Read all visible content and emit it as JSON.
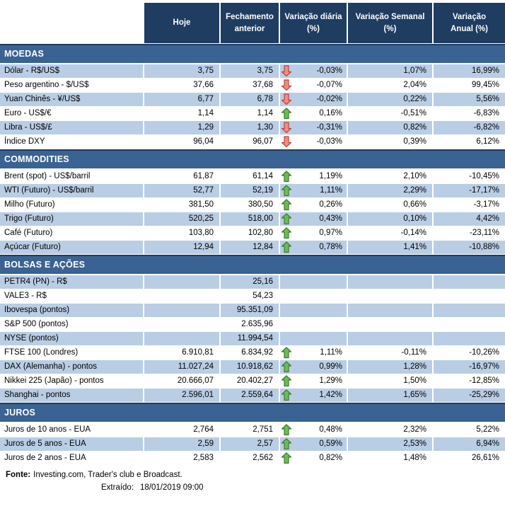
{
  "table": {
    "columns": [
      "",
      "Hoje",
      "Fechamento\nanterior",
      "Variação diária\n(%)",
      "Variação Semanal\n(%)",
      "Variação\nAnual (%)"
    ]
  },
  "sections": [
    {
      "title": "MOEDAS",
      "rows": [
        {
          "label": "Dólar - R$/US$",
          "hoje": "3,75",
          "fechamento": "3,75",
          "arrow": "down",
          "var_diaria": "-0,03%",
          "var_semanal": "1,07%",
          "var_anual": "16,99%",
          "shaded": true
        },
        {
          "label": "Peso argentino - $/US$",
          "hoje": "37,66",
          "fechamento": "37,68",
          "arrow": "down",
          "var_diaria": "-0,07%",
          "var_semanal": "2,04%",
          "var_anual": "99,45%",
          "shaded": false
        },
        {
          "label": "Yuan Chinês - ¥/US$",
          "hoje": "6,77",
          "fechamento": "6,78",
          "arrow": "down",
          "var_diaria": "-0,02%",
          "var_semanal": "0,22%",
          "var_anual": "5,56%",
          "shaded": true
        },
        {
          "label": "Euro - US$/€",
          "hoje": "1,14",
          "fechamento": "1,14",
          "arrow": "up",
          "var_diaria": "0,16%",
          "var_semanal": "-0,51%",
          "var_anual": "-6,83%",
          "shaded": false
        },
        {
          "label": "Libra - US$/£",
          "hoje": "1,29",
          "fechamento": "1,30",
          "arrow": "down",
          "var_diaria": "-0,31%",
          "var_semanal": "0,82%",
          "var_anual": "-6,82%",
          "shaded": true
        },
        {
          "label": "Índice DXY",
          "hoje": "96,04",
          "fechamento": "96,07",
          "arrow": "down",
          "var_diaria": "-0,03%",
          "var_semanal": "0,39%",
          "var_anual": "6,12%",
          "shaded": false
        }
      ]
    },
    {
      "title": "COMMODITIES",
      "rows": [
        {
          "label": "Brent (spot) - US$/barril",
          "hoje": "61,87",
          "fechamento": "61,14",
          "arrow": "up",
          "var_diaria": "1,19%",
          "var_semanal": "2,10%",
          "var_anual": "-10,45%",
          "shaded": false
        },
        {
          "label": "WTI (Futuro) - US$/barril",
          "hoje": "52,77",
          "fechamento": "52,19",
          "arrow": "up",
          "var_diaria": "1,11%",
          "var_semanal": "2,29%",
          "var_anual": "-17,17%",
          "shaded": true
        },
        {
          "label": "Milho (Futuro)",
          "hoje": "381,50",
          "fechamento": "380,50",
          "arrow": "up",
          "var_diaria": "0,26%",
          "var_semanal": "0,66%",
          "var_anual": "-3,17%",
          "shaded": false
        },
        {
          "label": "Trigo (Futuro)",
          "hoje": "520,25",
          "fechamento": "518,00",
          "arrow": "up",
          "var_diaria": "0,43%",
          "var_semanal": "0,10%",
          "var_anual": "4,42%",
          "shaded": true
        },
        {
          "label": "Café (Futuro)",
          "hoje": "103,80",
          "fechamento": "102,80",
          "arrow": "up",
          "var_diaria": "0,97%",
          "var_semanal": "-0,14%",
          "var_anual": "-23,11%",
          "shaded": false
        },
        {
          "label": "Açúcar (Futuro)",
          "hoje": "12,94",
          "fechamento": "12,84",
          "arrow": "up",
          "var_diaria": "0,78%",
          "var_semanal": "1,41%",
          "var_anual": "-10,88%",
          "shaded": true
        }
      ]
    },
    {
      "title": "BOLSAS E AÇÕES",
      "rows": [
        {
          "label": "PETR4 (PN) - R$",
          "hoje": "",
          "fechamento": "25,16",
          "arrow": "",
          "var_diaria": "",
          "var_semanal": "",
          "var_anual": "",
          "shaded": true
        },
        {
          "label": "VALE3 - R$",
          "hoje": "",
          "fechamento": "54,23",
          "arrow": "",
          "var_diaria": "",
          "var_semanal": "",
          "var_anual": "",
          "shaded": false
        },
        {
          "label": "Ibovespa (pontos)",
          "hoje": "",
          "fechamento": "95.351,09",
          "arrow": "",
          "var_diaria": "",
          "var_semanal": "",
          "var_anual": "",
          "shaded": true
        },
        {
          "label": "S&P 500 (pontos)",
          "hoje": "",
          "fechamento": "2.635,96",
          "arrow": "",
          "var_diaria": "",
          "var_semanal": "",
          "var_anual": "",
          "shaded": false
        },
        {
          "label": "NYSE (pontos)",
          "hoje": "",
          "fechamento": "11.994,54",
          "arrow": "",
          "var_diaria": "",
          "var_semanal": "",
          "var_anual": "",
          "shaded": true
        },
        {
          "label": "FTSE 100 (Londres)",
          "hoje": "6.910,81",
          "fechamento": "6.834,92",
          "arrow": "up",
          "var_diaria": "1,11%",
          "var_semanal": "-0,11%",
          "var_anual": "-10,26%",
          "shaded": false
        },
        {
          "label": "DAX (Alemanha) - pontos",
          "hoje": "11.027,24",
          "fechamento": "10.918,62",
          "arrow": "up",
          "var_diaria": "0,99%",
          "var_semanal": "1,28%",
          "var_anual": "-16,97%",
          "shaded": true
        },
        {
          "label": "Nikkei 225 (Japão) - pontos",
          "hoje": "20.666,07",
          "fechamento": "20.402,27",
          "arrow": "up",
          "var_diaria": "1,29%",
          "var_semanal": "1,50%",
          "var_anual": "-12,85%",
          "shaded": false
        },
        {
          "label": "Shanghai - pontos",
          "hoje": "2.596,01",
          "fechamento": "2.559,64",
          "arrow": "up",
          "var_diaria": "1,42%",
          "var_semanal": "1,65%",
          "var_anual": "-25,29%",
          "shaded": true
        }
      ]
    },
    {
      "title": "JUROS",
      "rows": [
        {
          "label": "Juros de 10 anos - EUA",
          "hoje": "2,764",
          "fechamento": "2,751",
          "arrow": "up",
          "var_diaria": "0,48%",
          "var_semanal": "2,32%",
          "var_anual": "5,22%",
          "shaded": false
        },
        {
          "label": "Juros de 5 anos - EUA",
          "hoje": "2,59",
          "fechamento": "2,57",
          "arrow": "up",
          "var_diaria": "0,59%",
          "var_semanal": "2,53%",
          "var_anual": "6,94%",
          "shaded": true
        },
        {
          "label": "Juros de 2 anos - EUA",
          "hoje": "2,583",
          "fechamento": "2,562",
          "arrow": "up",
          "var_diaria": "0,82%",
          "var_semanal": "1,48%",
          "var_anual": "26,61%",
          "shaded": false
        }
      ]
    }
  ],
  "footer": {
    "fonte_label": "Fonte:",
    "fonte_text": "Investing.com, Trader's club e Broadcast.",
    "extraido_label": "Extraído:",
    "extraido_value": "18/01/2019 09:00"
  },
  "colors": {
    "header_bg": "#1f3c61",
    "section_bg": "#3a6292",
    "row_band": "#b9cde5",
    "up_arrow_fill": "#6bbd52",
    "up_arrow_stroke": "#3f7a2e",
    "down_arrow_fill": "#ee8f80",
    "down_arrow_stroke": "#b94441"
  }
}
